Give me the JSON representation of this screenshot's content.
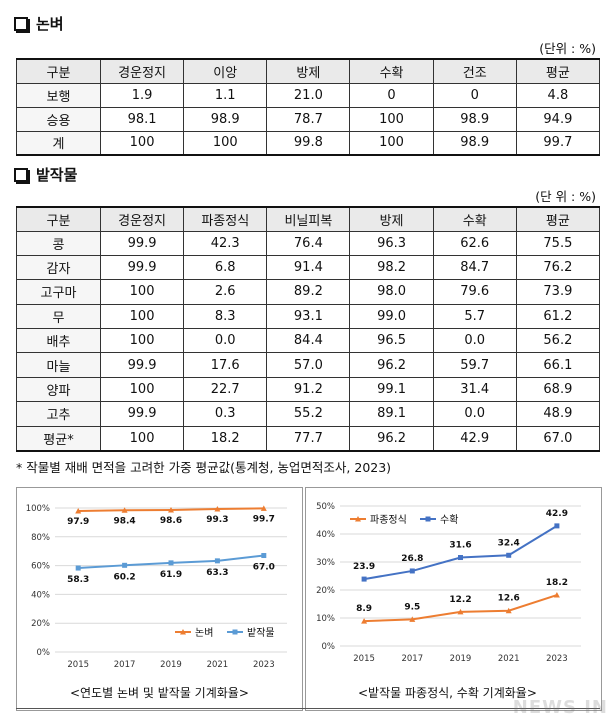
{
  "paddy": {
    "title": "논벼",
    "unit": "(단위 : %)",
    "headers": [
      "구분",
      "경운정지",
      "이앙",
      "방제",
      "수확",
      "건조",
      "평균"
    ],
    "rows": [
      [
        "보행",
        "1.9",
        "1.1",
        "21.0",
        "0",
        "0",
        "4.8"
      ],
      [
        "승용",
        "98.1",
        "98.9",
        "78.7",
        "100",
        "98.9",
        "94.9"
      ],
      [
        "계",
        "100",
        "100",
        "99.8",
        "100",
        "98.9",
        "99.7"
      ]
    ]
  },
  "field": {
    "title": "밭작물",
    "unit": "(단 위 : %)",
    "headers": [
      "구분",
      "경운정지",
      "파종정식",
      "비닐피복",
      "방제",
      "수확",
      "평균"
    ],
    "rows": [
      [
        "콩",
        "99.9",
        "42.3",
        "76.4",
        "96.3",
        "62.6",
        "75.5"
      ],
      [
        "감자",
        "99.9",
        "6.8",
        "91.4",
        "98.2",
        "84.7",
        "76.2"
      ],
      [
        "고구마",
        "100",
        "2.6",
        "89.2",
        "98.0",
        "79.6",
        "73.9"
      ],
      [
        "무",
        "100",
        "8.3",
        "93.1",
        "99.0",
        "5.7",
        "61.2"
      ],
      [
        "배추",
        "100",
        "0.0",
        "84.4",
        "96.5",
        "0.0",
        "56.2"
      ],
      [
        "마늘",
        "99.9",
        "17.6",
        "57.0",
        "96.2",
        "59.7",
        "66.1"
      ],
      [
        "양파",
        "100",
        "22.7",
        "91.2",
        "99.1",
        "31.4",
        "68.9"
      ],
      [
        "고추",
        "99.9",
        "0.3",
        "55.2",
        "89.1",
        "0.0",
        "48.9"
      ],
      [
        "평균*",
        "100",
        "18.2",
        "77.7",
        "96.2",
        "42.9",
        "67.0"
      ]
    ]
  },
  "footnote": "* 작물별 재배 면적을 고려한 가중 평균값(통계청, 농업면적조사, 2023)",
  "captions": {
    "left": "<연도별 논벼 및 밭작물 기계화율>",
    "right": "<밭작물 파종정식, 수확 기계화율>"
  },
  "watermark": "NEWS IN",
  "colors": {
    "orange": "#ed7d31",
    "blue": "#5b9bd5",
    "navy": "#4472c4"
  },
  "chart_data": [
    {
      "type": "line",
      "categories": [
        "2015",
        "2017",
        "2019",
        "2021",
        "2023"
      ],
      "ylim": [
        0,
        100
      ],
      "y_ticks": [
        "0%",
        "20%",
        "40%",
        "60%",
        "80%",
        "100%"
      ],
      "grid": true,
      "legend": "bottom",
      "series": [
        {
          "name": "논벼",
          "values": [
            97.9,
            98.4,
            98.6,
            99.3,
            99.7
          ],
          "labels": [
            "97.9",
            "98.4",
            "98.6",
            "99.3",
            "99.7"
          ]
        },
        {
          "name": "밭작물",
          "values": [
            58.3,
            60.2,
            61.9,
            63.3,
            67.0
          ],
          "labels": [
            "58.3",
            "60.2",
            "61.9",
            "63.3",
            "67.0"
          ]
        }
      ]
    },
    {
      "type": "line",
      "categories": [
        "2015",
        "2017",
        "2019",
        "2021",
        "2023"
      ],
      "ylim": [
        0,
        50
      ],
      "y_ticks": [
        "0%",
        "10%",
        "20%",
        "30%",
        "40%",
        "50%"
      ],
      "grid": true,
      "legend": "top-left",
      "series": [
        {
          "name": "파종정식",
          "values": [
            8.9,
            9.5,
            12.2,
            12.6,
            18.2
          ],
          "labels": [
            "8.9",
            "9.5",
            "12.2",
            "12.6",
            "18.2"
          ]
        },
        {
          "name": "수확",
          "values": [
            23.9,
            26.8,
            31.6,
            32.4,
            42.9
          ],
          "labels": [
            "23.9",
            "26.8",
            "31.6",
            "32.4",
            "42.9"
          ]
        }
      ]
    }
  ]
}
